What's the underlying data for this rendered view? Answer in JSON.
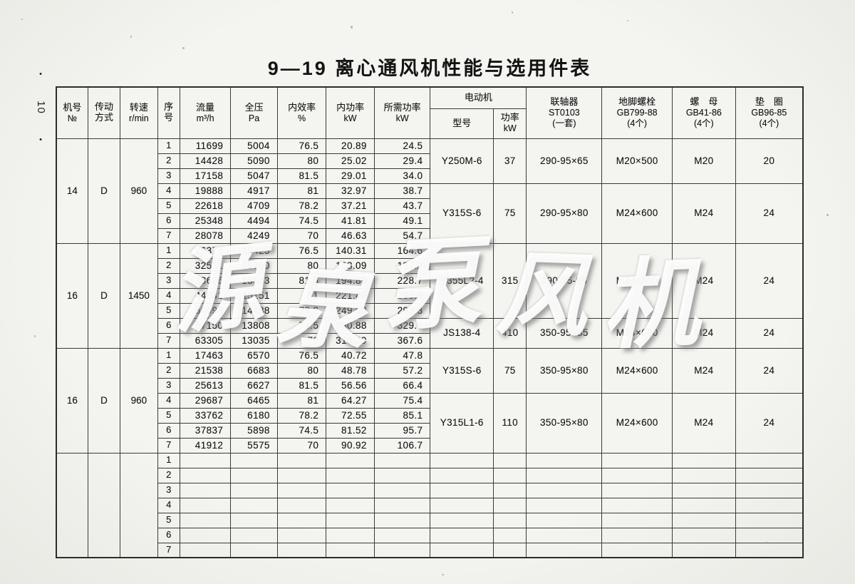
{
  "page": {
    "title": "9—19 离心通风机性能与选用件表",
    "page_number": "10",
    "page_number_dot": "•",
    "watermark_chars": [
      "源",
      "泉",
      "泵",
      "风",
      "机"
    ]
  },
  "table": {
    "headers": {
      "machine_no": [
        "机号",
        "№"
      ],
      "drive": [
        "传动",
        "方式"
      ],
      "speed": [
        "转速",
        "r/min"
      ],
      "serial": [
        "序",
        "号"
      ],
      "flow": [
        "流量",
        "m³/h"
      ],
      "pressure": [
        "全压",
        "Pa"
      ],
      "efficiency": [
        "内效率",
        "%"
      ],
      "internal_power": [
        "内功率",
        "kW"
      ],
      "required_power": [
        "所需功率",
        "kW"
      ],
      "motor": "电动机",
      "motor_model": "型号",
      "motor_power": [
        "功率",
        "kW"
      ],
      "coupling": [
        "联轴器",
        "ST0103",
        "(一套)"
      ],
      "anchor_bolt": [
        "地脚螺栓",
        "GB799-88",
        "(4个)"
      ],
      "nut": [
        "螺　母",
        "GB41-86",
        "(4个)"
      ],
      "washer": [
        "垫　圈",
        "GB96-85",
        "(4个)"
      ]
    },
    "blocks": [
      {
        "machine_no": "14",
        "drive": "D",
        "speed": "960",
        "rows": [
          [
            "1",
            "11699",
            "5004",
            "76.5",
            "20.89",
            "24.5"
          ],
          [
            "2",
            "14428",
            "5090",
            "80",
            "25.02",
            "29.4"
          ],
          [
            "3",
            "17158",
            "5047",
            "81.5",
            "29.01",
            "34.0"
          ],
          [
            "4",
            "19888",
            "4917",
            "81",
            "32.97",
            "38.7"
          ],
          [
            "5",
            "22618",
            "4709",
            "78.2",
            "37.21",
            "43.7"
          ],
          [
            "6",
            "25348",
            "4494",
            "74.5",
            "41.81",
            "49.1"
          ],
          [
            "7",
            "28078",
            "4249",
            "70",
            "46.63",
            "54.7"
          ]
        ],
        "motors": [
          {
            "start": 1,
            "end": 3,
            "model": "Y250M-6",
            "power": "37",
            "coupling": "290-95×65",
            "bolt": "M20×500",
            "nut": "M20",
            "washer": "20"
          },
          {
            "start": 4,
            "end": 7,
            "model": "Y315S-6",
            "power": "75",
            "coupling": "290-95×80",
            "bolt": "M24×600",
            "nut": "M24",
            "washer": "24"
          }
        ]
      },
      {
        "machine_no": "16",
        "drive": "D",
        "speed": "1450",
        "rows": [
          [
            "1",
            "26377",
            "15425",
            "76.5",
            "140.31",
            "164.6"
          ],
          [
            "2",
            "32531",
            "15700",
            "80",
            "168.09",
            "197.2"
          ],
          [
            "3",
            "38686",
            "15563",
            "81.5",
            "194.89",
            "228.7"
          ],
          [
            "4",
            "44841",
            "15151",
            "81",
            "221.46",
            "259.9"
          ],
          [
            "5",
            "50995",
            "14488",
            "78.2",
            "249.98",
            "293.3"
          ],
          [
            "6",
            "57150",
            "13808",
            "74.5",
            "280.88",
            "329.6"
          ],
          [
            "7",
            "63305",
            "13035",
            "70",
            "313.29",
            "367.6"
          ]
        ],
        "motors": [
          {
            "start": 1,
            "end": 5,
            "model": "Y355L2-4",
            "power": "315",
            "coupling": "290-95-95",
            "bolt": "M24×600",
            "nut": "M24",
            "washer": "24"
          },
          {
            "start": 6,
            "end": 7,
            "model": "JS138-4",
            "power": "410",
            "coupling": "350-95×85",
            "bolt": "M24×600",
            "nut": "M24",
            "washer": "24"
          }
        ]
      },
      {
        "machine_no": "16",
        "drive": "D",
        "speed": "960",
        "rows": [
          [
            "1",
            "17463",
            "6570",
            "76.5",
            "40.72",
            "47.8"
          ],
          [
            "2",
            "21538",
            "6683",
            "80",
            "48.78",
            "57.2"
          ],
          [
            "3",
            "25613",
            "6627",
            "81.5",
            "56.56",
            "66.4"
          ],
          [
            "4",
            "29687",
            "6465",
            "81",
            "64.27",
            "75.4"
          ],
          [
            "5",
            "33762",
            "6180",
            "78.2",
            "72.55",
            "85.1"
          ],
          [
            "6",
            "37837",
            "5898",
            "74.5",
            "81.52",
            "95.7"
          ],
          [
            "7",
            "41912",
            "5575",
            "70",
            "90.92",
            "106.7"
          ]
        ],
        "motors": [
          {
            "start": 1,
            "end": 3,
            "model": "Y315S-6",
            "power": "75",
            "coupling": "350-95×80",
            "bolt": "M24×600",
            "nut": "M24",
            "washer": "24"
          },
          {
            "start": 4,
            "end": 7,
            "model": "Y315L1-6",
            "power": "110",
            "coupling": "350-95×80",
            "bolt": "M24×600",
            "nut": "M24",
            "washer": "24"
          }
        ]
      },
      {
        "machine_no": "",
        "drive": "",
        "speed": "",
        "rows": [
          [
            "1",
            "",
            "",
            "",
            "",
            ""
          ],
          [
            "2",
            "",
            "",
            "",
            "",
            ""
          ],
          [
            "3",
            "",
            "",
            "",
            "",
            ""
          ],
          [
            "4",
            "",
            "",
            "",
            "",
            ""
          ],
          [
            "5",
            "",
            "",
            "",
            "",
            ""
          ],
          [
            "6",
            "",
            "",
            "",
            "",
            ""
          ],
          [
            "7",
            "",
            "",
            "",
            "",
            ""
          ]
        ],
        "motors": []
      }
    ]
  }
}
